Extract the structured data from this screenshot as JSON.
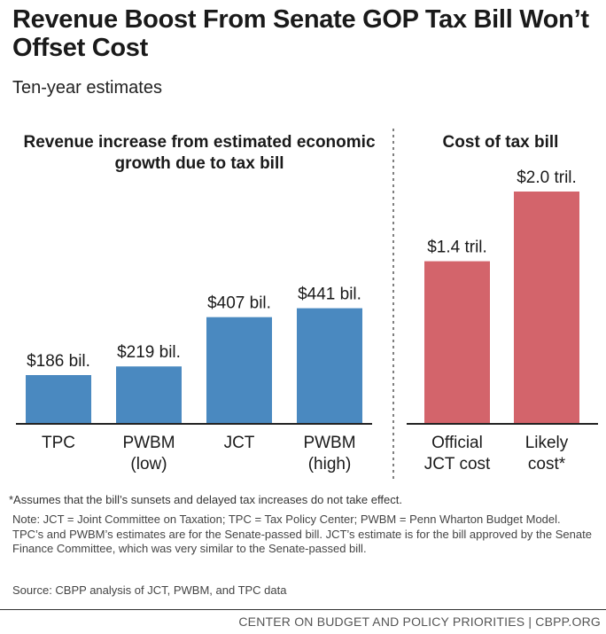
{
  "title": "Revenue Boost From Senate GOP Tax Bill Won’t Offset Cost",
  "subtitle": "Ten-year estimates",
  "footnote": "*Assumes that the bill’s sunsets and delayed tax increases do not take effect.",
  "note": "Note: JCT = Joint Committee on Taxation; TPC = Tax Policy Center; PWBM = Penn Wharton Budget Model. TPC’s and PWBM’s estimates are for the Senate-passed bill. JCT’s estimate is for the bill approved by the Senate Finance Committee, which was very similar to the Senate-passed bill.",
  "source": "Source: CBPP analysis of JCT, PWBM, and TPC data",
  "footer": "CENTER ON BUDGET AND POLICY PRIORITIES | CBPP.ORG",
  "colors": {
    "blue": "#4a89c0",
    "red": "#d3646b",
    "divider": "#555555"
  },
  "chart_data": [
    {
      "type": "bar",
      "title": "Revenue increase from estimated economic growth due to tax bill",
      "unit": "billions of dollars",
      "categories": [
        [
          "TPC"
        ],
        [
          "PWBM",
          "(low)"
        ],
        [
          "JCT"
        ],
        [
          "PWBM",
          "(high)"
        ]
      ],
      "values": [
        186,
        219,
        407,
        441
      ],
      "labels": [
        "$186 bil.",
        "$219 bil.",
        "$407 bil.",
        "$441 bil."
      ],
      "color": "#4a89c0"
    },
    {
      "type": "bar",
      "title": "Cost of tax bill",
      "unit": "trillions of dollars",
      "categories": [
        [
          "Official",
          "JCT cost"
        ],
        [
          "Likely",
          "cost*"
        ]
      ],
      "values": [
        1.4,
        2.0
      ],
      "labels": [
        "$1.4 tril.",
        "$2.0 tril."
      ],
      "color": "#d3646b"
    }
  ]
}
